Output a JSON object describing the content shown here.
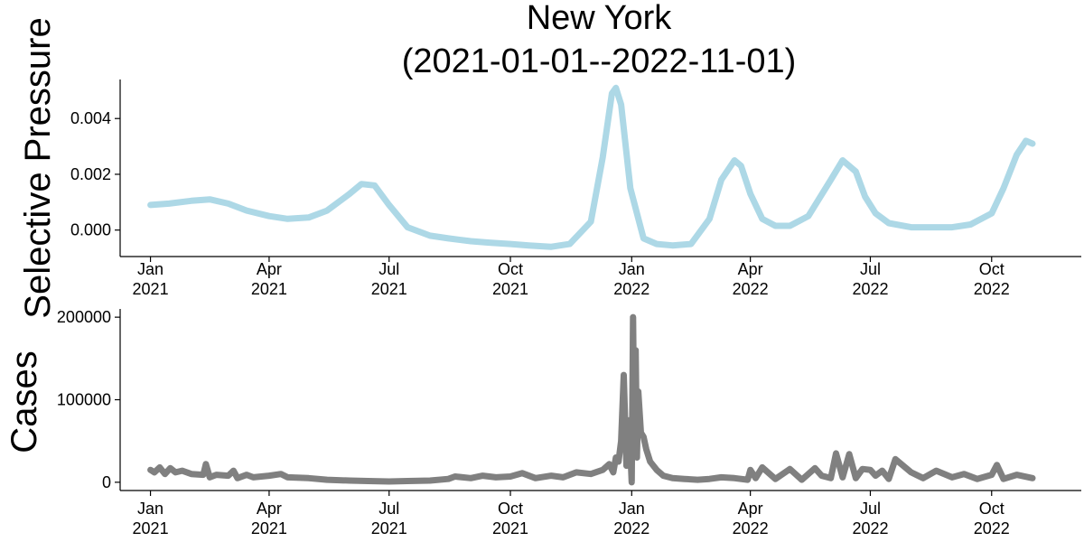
{
  "chart_data": [
    {
      "type": "line",
      "title_line1": "New York",
      "title_line2": "(2021-01-01--2022-11-01)",
      "ylabel": "Selective Pressure",
      "xlabel": "",
      "xlim": [
        "2020-12-09",
        "2022-12-08"
      ],
      "ylim": [
        -0.00095,
        0.0054
      ],
      "grid": false,
      "line_color": "#ADD8E6",
      "yticks": [
        {
          "value": 0.0,
          "label": "0.000"
        },
        {
          "value": 0.002,
          "label": "0.002"
        },
        {
          "value": 0.004,
          "label": "0.004"
        }
      ],
      "xticks": [
        {
          "date": "2021-01-01",
          "label1": "Jan",
          "label2": "2021"
        },
        {
          "date": "2021-04-01",
          "label1": "Apr",
          "label2": "2021"
        },
        {
          "date": "2021-07-01",
          "label1": "Jul",
          "label2": "2021"
        },
        {
          "date": "2021-10-01",
          "label1": "Oct",
          "label2": "2021"
        },
        {
          "date": "2022-01-01",
          "label1": "Jan",
          "label2": "2022"
        },
        {
          "date": "2022-04-01",
          "label1": "Apr",
          "label2": "2022"
        },
        {
          "date": "2022-07-01",
          "label1": "Jul",
          "label2": "2022"
        },
        {
          "date": "2022-10-01",
          "label1": "Oct",
          "label2": "2022"
        }
      ],
      "series": [
        {
          "x": [
            "2021-01-01",
            "2021-01-15",
            "2021-02-01",
            "2021-02-15",
            "2021-03-01",
            "2021-03-15",
            "2021-04-01",
            "2021-04-15",
            "2021-05-01",
            "2021-05-15",
            "2021-06-01",
            "2021-06-10",
            "2021-06-20",
            "2021-07-01",
            "2021-07-15",
            "2021-08-01",
            "2021-08-15",
            "2021-09-01",
            "2021-09-15",
            "2021-10-01",
            "2021-10-15",
            "2021-11-01",
            "2021-11-15",
            "2021-12-01",
            "2021-12-10",
            "2021-12-17",
            "2021-12-20",
            "2021-12-24",
            "2021-12-31",
            "2022-01-10",
            "2022-01-20",
            "2022-02-01",
            "2022-02-15",
            "2022-03-01",
            "2022-03-10",
            "2022-03-20",
            "2022-03-25",
            "2022-04-01",
            "2022-04-10",
            "2022-04-20",
            "2022-05-01",
            "2022-05-15",
            "2022-06-01",
            "2022-06-10",
            "2022-06-20",
            "2022-06-27",
            "2022-07-05",
            "2022-07-15",
            "2022-08-01",
            "2022-08-15",
            "2022-09-01",
            "2022-09-15",
            "2022-10-01",
            "2022-10-10",
            "2022-10-20",
            "2022-10-27",
            "2022-11-01"
          ],
          "values": [
            0.0009,
            0.00095,
            0.00105,
            0.0011,
            0.00095,
            0.0007,
            0.0005,
            0.0004,
            0.00045,
            0.0007,
            0.0013,
            0.00165,
            0.0016,
            0.0009,
            0.0001,
            -0.0002,
            -0.0003,
            -0.0004,
            -0.00045,
            -0.0005,
            -0.00055,
            -0.0006,
            -0.0005,
            0.0003,
            0.0026,
            0.0049,
            0.0051,
            0.0045,
            0.0015,
            -0.0003,
            -0.0005,
            -0.00055,
            -0.0005,
            0.0004,
            0.0018,
            0.0025,
            0.0023,
            0.0013,
            0.0004,
            0.00015,
            0.00015,
            0.0005,
            0.0018,
            0.0025,
            0.0021,
            0.0012,
            0.0006,
            0.00025,
            0.0001,
            0.0001,
            0.0001,
            0.0002,
            0.0006,
            0.0015,
            0.0027,
            0.0032,
            0.0031
          ]
        }
      ]
    },
    {
      "type": "line",
      "ylabel": "Cases",
      "xlabel": "",
      "xlim": [
        "2020-12-09",
        "2022-12-08"
      ],
      "ylim": [
        -10000,
        210000
      ],
      "grid": false,
      "line_color": "#808080",
      "yticks": [
        {
          "value": 0,
          "label": "0"
        },
        {
          "value": 100000,
          "label": "100000"
        },
        {
          "value": 200000,
          "label": "200000"
        }
      ],
      "xticks": [
        {
          "date": "2021-01-01",
          "label1": "Jan",
          "label2": "2021"
        },
        {
          "date": "2021-04-01",
          "label1": "Apr",
          "label2": "2021"
        },
        {
          "date": "2021-07-01",
          "label1": "Jul",
          "label2": "2021"
        },
        {
          "date": "2021-10-01",
          "label1": "Oct",
          "label2": "2021"
        },
        {
          "date": "2022-01-01",
          "label1": "Jan",
          "label2": "2022"
        },
        {
          "date": "2022-04-01",
          "label1": "Apr",
          "label2": "2022"
        },
        {
          "date": "2022-07-01",
          "label1": "Jul",
          "label2": "2022"
        },
        {
          "date": "2022-10-01",
          "label1": "Oct",
          "label2": "2022"
        }
      ],
      "series": [
        {
          "x": [
            "2021-01-01",
            "2021-01-04",
            "2021-01-08",
            "2021-01-12",
            "2021-01-16",
            "2021-01-20",
            "2021-01-25",
            "2021-02-01",
            "2021-02-10",
            "2021-02-12",
            "2021-02-15",
            "2021-02-20",
            "2021-03-01",
            "2021-03-05",
            "2021-03-08",
            "2021-03-15",
            "2021-03-20",
            "2021-04-01",
            "2021-04-10",
            "2021-04-15",
            "2021-05-01",
            "2021-05-15",
            "2021-06-01",
            "2021-06-15",
            "2021-07-01",
            "2021-07-15",
            "2021-08-01",
            "2021-08-15",
            "2021-08-20",
            "2021-09-01",
            "2021-09-10",
            "2021-09-20",
            "2021-10-01",
            "2021-10-10",
            "2021-10-20",
            "2021-11-01",
            "2021-11-10",
            "2021-11-20",
            "2021-12-01",
            "2021-12-10",
            "2021-12-15",
            "2021-12-18",
            "2021-12-20",
            "2021-12-22",
            "2021-12-24",
            "2021-12-26",
            "2021-12-28",
            "2021-12-30",
            "2022-01-01",
            "2022-01-02",
            "2022-01-03",
            "2022-01-04",
            "2022-01-05",
            "2022-01-06",
            "2022-01-08",
            "2022-01-10",
            "2022-01-12",
            "2022-01-15",
            "2022-01-20",
            "2022-01-25",
            "2022-02-01",
            "2022-02-10",
            "2022-02-20",
            "2022-03-01",
            "2022-03-10",
            "2022-03-20",
            "2022-03-30",
            "2022-04-01",
            "2022-04-05",
            "2022-04-10",
            "2022-04-20",
            "2022-05-01",
            "2022-05-10",
            "2022-05-20",
            "2022-05-25",
            "2022-06-01",
            "2022-06-05",
            "2022-06-10",
            "2022-06-15",
            "2022-06-20",
            "2022-06-25",
            "2022-07-01",
            "2022-07-05",
            "2022-07-10",
            "2022-07-15",
            "2022-07-20",
            "2022-08-01",
            "2022-08-10",
            "2022-08-20",
            "2022-09-01",
            "2022-09-10",
            "2022-09-20",
            "2022-10-01",
            "2022-10-05",
            "2022-10-10",
            "2022-10-20",
            "2022-11-01"
          ],
          "values": [
            15000,
            12000,
            18000,
            10000,
            17000,
            12000,
            14000,
            10000,
            9000,
            22000,
            6000,
            9000,
            8000,
            14000,
            5000,
            9000,
            6000,
            8000,
            10000,
            6000,
            5000,
            3000,
            2000,
            1500,
            1000,
            1500,
            2000,
            4000,
            7000,
            5000,
            8000,
            6000,
            7000,
            11000,
            5000,
            8000,
            6000,
            12000,
            10000,
            15000,
            22000,
            12000,
            30000,
            25000,
            50000,
            130000,
            20000,
            75000,
            0,
            200000,
            40000,
            160000,
            30000,
            110000,
            60000,
            55000,
            40000,
            25000,
            15000,
            8000,
            5000,
            4000,
            3000,
            4000,
            6000,
            5000,
            3000,
            15000,
            5000,
            18000,
            4000,
            16000,
            3000,
            17000,
            8000,
            5000,
            35000,
            6000,
            34000,
            5000,
            16000,
            15000,
            8000,
            14000,
            4000,
            28000,
            12000,
            5000,
            14000,
            6000,
            10000,
            4000,
            9000,
            21000,
            4000,
            9000,
            5000
          ]
        }
      ]
    }
  ]
}
